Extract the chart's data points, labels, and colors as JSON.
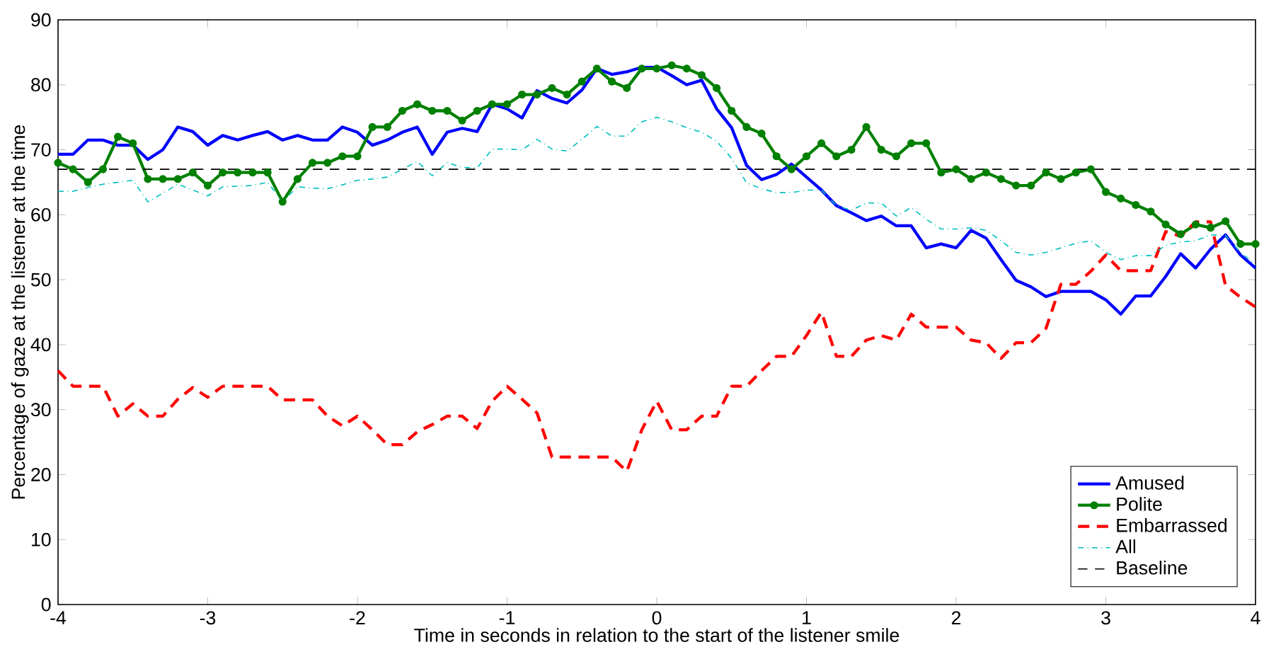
{
  "chart_data": {
    "type": "line",
    "xlabel": "Time in seconds in relation to the start of the listener smile",
    "ylabel": "Percentage of gaze at the listener at the time",
    "x": [
      -4.0,
      -3.9,
      -3.8,
      -3.7,
      -3.6,
      -3.5,
      -3.4,
      -3.3,
      -3.2,
      -3.1,
      -3.0,
      -2.9,
      -2.8,
      -2.7,
      -2.6,
      -2.5,
      -2.4,
      -2.3,
      -2.2,
      -2.1,
      -2.0,
      -1.9,
      -1.8,
      -1.7,
      -1.6,
      -1.5,
      -1.4,
      -1.3,
      -1.2,
      -1.1,
      -1.0,
      -0.9,
      -0.8,
      -0.7,
      -0.6,
      -0.5,
      -0.4,
      -0.3,
      -0.2,
      -0.1,
      0.0,
      0.1,
      0.2,
      0.3,
      0.4,
      0.5,
      0.6,
      0.7,
      0.8,
      0.9,
      1.0,
      1.1,
      1.2,
      1.3,
      1.4,
      1.5,
      1.6,
      1.7,
      1.8,
      1.9,
      2.0,
      2.1,
      2.2,
      2.3,
      2.4,
      2.5,
      2.6,
      2.7,
      2.8,
      2.9,
      3.0,
      3.1,
      3.2,
      3.3,
      3.4,
      3.5,
      3.6,
      3.7,
      3.8,
      3.9,
      4.0
    ],
    "xlim": [
      -4,
      4
    ],
    "ylim": [
      0,
      90
    ],
    "xticks": [
      -4,
      -3,
      -2,
      -1,
      0,
      1,
      2,
      3,
      4
    ],
    "yticks": [
      0,
      10,
      20,
      30,
      40,
      50,
      60,
      70,
      80,
      90
    ],
    "grid": false,
    "legend": "bottom right",
    "series": [
      {
        "name": "Amused",
        "color": "#0000ff",
        "line_style": "solid",
        "marker": "none",
        "values": [
          69.3,
          69.3,
          71.5,
          71.5,
          70.7,
          70.7,
          68.5,
          70,
          73.5,
          72.8,
          70.7,
          72.2,
          71.5,
          72.2,
          72.8,
          71.5,
          72.2,
          71.5,
          71.5,
          73.5,
          72.7,
          70.7,
          71.5,
          72.7,
          73.5,
          69.3,
          72.7,
          73.3,
          72.8,
          77,
          76.3,
          74.9,
          79.1,
          77.9,
          77.2,
          79.2,
          82.5,
          81.6,
          82,
          82.7,
          82.7,
          81.4,
          80,
          80.7,
          76.3,
          73.4,
          67.6,
          65.4,
          66.2,
          67.8,
          65.8,
          63.8,
          61.4,
          60.3,
          59.1,
          59.8,
          58.3,
          58.3,
          54.9,
          55.5,
          54.9,
          57.6,
          56.4,
          53.1,
          49.9,
          48.9,
          47.4,
          48.2,
          48.2,
          48.2,
          46.9,
          44.7,
          47.5,
          47.5,
          50.5,
          54,
          51.8,
          54.7,
          56.9,
          53.8,
          51.8
        ]
      },
      {
        "name": "Polite",
        "color": "#008000",
        "line_style": "solid",
        "marker": "circle",
        "values": [
          68,
          67,
          65,
          67,
          72,
          71,
          65.5,
          65.5,
          65.5,
          66.5,
          64.5,
          66.5,
          66.5,
          66.5,
          66.5,
          62,
          65.5,
          68,
          68,
          69,
          69,
          73.5,
          73.5,
          76,
          77,
          76,
          76,
          74.5,
          76,
          77,
          77,
          78.5,
          78.5,
          79.5,
          78.5,
          80.5,
          82.5,
          80.5,
          79.5,
          82.5,
          82.5,
          83,
          82.5,
          81.5,
          79.5,
          76,
          73.5,
          72.5,
          69,
          67,
          69,
          71,
          69,
          70,
          73.5,
          70,
          69,
          71,
          71,
          66.5,
          67,
          65.5,
          66.5,
          65.5,
          64.5,
          64.5,
          66.5,
          65.5,
          66.5,
          67,
          63.5,
          62.5,
          61.5,
          60.5,
          58.5,
          57,
          58.5,
          58,
          59,
          55.5,
          55.5
        ]
      },
      {
        "name": "Embarrassed",
        "color": "#ff0000",
        "line_style": "dashed",
        "marker": "none",
        "values": [
          36,
          33.6,
          33.6,
          33.6,
          29,
          30.9,
          29,
          29,
          31.6,
          33.4,
          31.9,
          33.6,
          33.6,
          33.6,
          33.6,
          31.5,
          31.5,
          31.5,
          29,
          27.5,
          29,
          26.9,
          24.6,
          24.6,
          26.6,
          27.7,
          29,
          29,
          27.1,
          31.3,
          33.6,
          31.6,
          29.5,
          22.7,
          22.7,
          22.7,
          22.7,
          22.7,
          20.5,
          26.9,
          31.3,
          26.9,
          26.9,
          29,
          29,
          33.6,
          33.6,
          36,
          38.2,
          38.2,
          41.4,
          45,
          38.2,
          38.2,
          40.7,
          41.4,
          40.7,
          44.7,
          42.7,
          42.7,
          42.7,
          40.7,
          40.3,
          37.9,
          40.3,
          40.3,
          42.5,
          49.3,
          49.3,
          51.3,
          53.8,
          51.4,
          51.4,
          51.4,
          57.4,
          56.7,
          58.9,
          58.9,
          49.1,
          47.3,
          45.8
        ]
      },
      {
        "name": "All",
        "color": "#00bfbf",
        "line_style": "dashdot",
        "marker": "none",
        "values": [
          63.6,
          63.6,
          64.2,
          64.7,
          65,
          65.3,
          62,
          63.3,
          64.7,
          63.8,
          62.9,
          64.3,
          64.4,
          64.5,
          65,
          62,
          64.3,
          64.1,
          64,
          64.6,
          65.3,
          65.5,
          65.8,
          67,
          68.2,
          66,
          68,
          67.3,
          67.2,
          70.1,
          70.1,
          70,
          71.6,
          70.1,
          69.8,
          71.6,
          73.6,
          72.1,
          72.1,
          74.3,
          75,
          74.3,
          73.4,
          72.7,
          71.3,
          68.7,
          64.9,
          64,
          63.4,
          63.4,
          63.8,
          63.8,
          61.4,
          60.7,
          61.8,
          61.8,
          59.8,
          61.1,
          59.3,
          57.8,
          57.8,
          58,
          57.6,
          56,
          54.2,
          53.8,
          54.2,
          54.9,
          55.6,
          56,
          54.2,
          53.1,
          53.7,
          53.7,
          55.3,
          55.8,
          56,
          56.9,
          56.8,
          54.2,
          52.3
        ]
      },
      {
        "name": "Baseline",
        "color": "#000000",
        "line_style": "dashed",
        "marker": "none",
        "x": [
          -4,
          4
        ],
        "values": [
          67,
          67
        ]
      }
    ]
  }
}
